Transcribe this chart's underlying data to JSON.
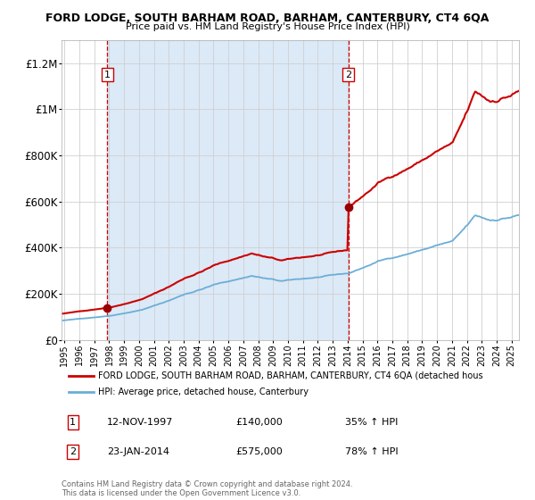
{
  "title": "FORD LODGE, SOUTH BARHAM ROAD, BARHAM, CANTERBURY, CT4 6QA",
  "subtitle": "Price paid vs. HM Land Registry's House Price Index (HPI)",
  "hpi_color": "#6baed6",
  "price_color": "#cc0000",
  "marker_color": "#990000",
  "fig_bg": "#ffffff",
  "plot_bg": "#ffffff",
  "shade_color": "#dce9f7",
  "grid_color": "#d0d0d0",
  "ylim": [
    0,
    1300000
  ],
  "yticks": [
    0,
    200000,
    400000,
    600000,
    800000,
    1000000,
    1200000
  ],
  "ytick_labels": [
    "£0",
    "£200K",
    "£400K",
    "£600K",
    "£800K",
    "£1M",
    "£1.2M"
  ],
  "sale1_year": 1997,
  "sale1_month": 11,
  "sale1_price": 140000,
  "sale1_label": "1",
  "sale2_year": 2014,
  "sale2_month": 1,
  "sale2_price": 575000,
  "sale2_label": "2",
  "legend_line1": "FORD LODGE, SOUTH BARHAM ROAD, BARHAM, CANTERBURY, CT4 6QA (detached hous",
  "legend_line2": "HPI: Average price, detached house, Canterbury",
  "ann1_num": "1",
  "ann1_text": "12-NOV-1997",
  "ann1_price": "£140,000",
  "ann1_hpi": "35% ↑ HPI",
  "ann2_num": "2",
  "ann2_text": "23-JAN-2014",
  "ann2_price": "£575,000",
  "ann2_hpi": "78% ↑ HPI",
  "footer": "Contains HM Land Registry data © Crown copyright and database right 2024.\nThis data is licensed under the Open Government Licence v3.0.",
  "xstart": 1994.8,
  "xend": 2025.5
}
